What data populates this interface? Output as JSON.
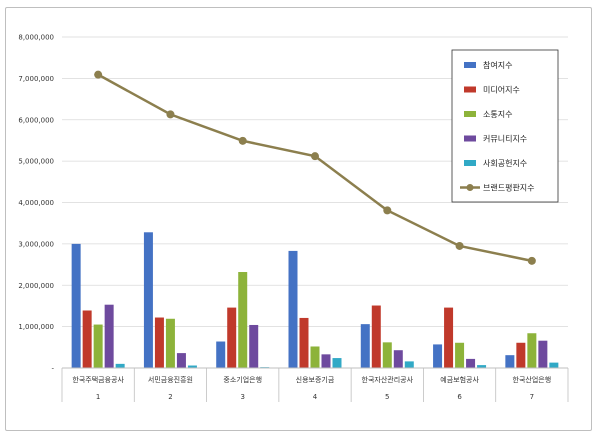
{
  "chart_data": {
    "type": "bar",
    "title": "",
    "xlabel": "",
    "ylabel": "",
    "ylim": [
      0,
      8000000
    ],
    "yticks": [
      "-",
      "1,000,000",
      "2,000,000",
      "3,000,000",
      "4,000,000",
      "5,000,000",
      "6,000,000",
      "7,000,000",
      "8,000,000"
    ],
    "grid": true,
    "legend_position": "top-right",
    "categories": [
      "한국주택금융공사",
      "서민금융진흥원",
      "중소기업은행",
      "신용보증기금",
      "한국자산관리공사",
      "예금보험공사",
      "한국산업은행"
    ],
    "category_numbers": [
      "1",
      "2",
      "3",
      "4",
      "5",
      "6",
      "7"
    ],
    "series": [
      {
        "name": "참여지수",
        "kind": "bar",
        "color": "#4472c4",
        "values": [
          3000000,
          3280000,
          640000,
          2830000,
          1060000,
          570000,
          310000
        ]
      },
      {
        "name": "미디어지수",
        "kind": "bar",
        "color": "#c0392b",
        "values": [
          1390000,
          1220000,
          1460000,
          1210000,
          1510000,
          1460000,
          610000
        ]
      },
      {
        "name": "소통지수",
        "kind": "bar",
        "color": "#8db33a",
        "values": [
          1050000,
          1190000,
          2320000,
          520000,
          620000,
          610000,
          840000
        ]
      },
      {
        "name": "커뮤니티지수",
        "kind": "bar",
        "color": "#6e4a9e",
        "values": [
          1530000,
          360000,
          1040000,
          330000,
          430000,
          220000,
          660000
        ]
      },
      {
        "name": "사회공헌지수",
        "kind": "bar",
        "color": "#31a9c6",
        "values": [
          100000,
          60000,
          20000,
          240000,
          160000,
          70000,
          130000
        ]
      },
      {
        "name": "브랜드평판지수",
        "kind": "line",
        "color": "#8c7f4e",
        "values": [
          7090000,
          6130000,
          5490000,
          5120000,
          3810000,
          2950000,
          2590000
        ]
      }
    ]
  }
}
